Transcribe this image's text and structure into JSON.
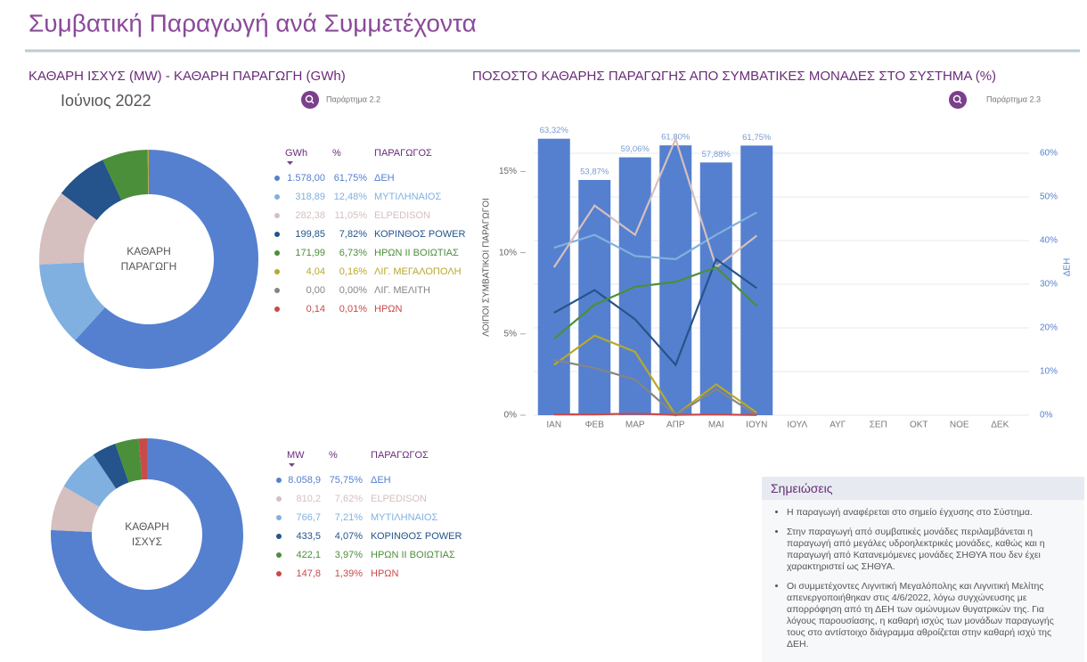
{
  "header": {
    "title": "Συμβατική Παραγωγή ανά Συμμετέχοντα"
  },
  "left_panel": {
    "title": "ΚΑΘΑΡΗ ΙΣΧΥΣ (MW) - ΚΑΘΑΡΗ ΠΑΡΑΓΩΓΗ (GWh)",
    "period": "Ιούνιος 2022",
    "link": "Παράρτημα 2.2"
  },
  "chart_data": [
    {
      "type": "pie",
      "center_label": [
        "ΚΑΘΑΡΗ",
        "ΠΑΡΑΓΩΓΗ"
      ],
      "columns": [
        "GWh",
        "%",
        "ΠΑΡΑΓΩΓΟΣ"
      ],
      "categories": [
        "ΔΕΗ",
        "ΜΥΤΙΛΗΝΑΙΟΣ",
        "ELPEDISON",
        "ΚΟΡΙΝΘΟΣ POWER",
        "ΗΡΩΝ ΙΙ ΒΟΙΩΤΙΑΣ",
        "ΛΙΓ. ΜΕΓΑΛΟΠΟΛΗ",
        "ΛΙΓ. ΜΕΛΙΤΗ",
        "ΗΡΩΝ"
      ],
      "values": [
        1578.0,
        318.89,
        282.38,
        199.85,
        171.99,
        4.04,
        0.0,
        0.14
      ],
      "value_labels": [
        "1.578,00",
        "318,89",
        "282,38",
        "199,85",
        "171,99",
        "4,04",
        "0,00",
        "0,14"
      ],
      "percents": [
        61.75,
        12.48,
        11.05,
        7.82,
        6.73,
        0.16,
        0.0,
        0.01
      ],
      "percent_labels": [
        "61,75%",
        "12,48%",
        "11,05%",
        "7,82%",
        "6,73%",
        "0,16%",
        "0,00%",
        "0,01%"
      ],
      "colors": [
        "#5580cf",
        "#80b0e0",
        "#d5bfbf",
        "#24548b",
        "#4b8f3a",
        "#b9a82b",
        "#858585",
        "#c94a4a"
      ]
    },
    {
      "type": "pie",
      "center_label": [
        "ΚΑΘΑΡΗ",
        "ΙΣΧΥΣ"
      ],
      "columns": [
        "MW",
        "%",
        "ΠΑΡΑΓΩΓΟΣ"
      ],
      "categories": [
        "ΔΕΗ",
        "ELPEDISON",
        "ΜΥΤΙΛΗΝΑΙΟΣ",
        "ΚΟΡΙΝΘΟΣ POWER",
        "ΗΡΩΝ ΙΙ ΒΟΙΩΤΙΑΣ",
        "ΗΡΩΝ"
      ],
      "values": [
        8058.9,
        810.2,
        766.7,
        433.5,
        422.1,
        147.8
      ],
      "value_labels": [
        "8.058,9",
        "810,2",
        "766,7",
        "433,5",
        "422,1",
        "147,8"
      ],
      "percents": [
        75.75,
        7.62,
        7.21,
        4.07,
        3.97,
        1.39
      ],
      "percent_labels": [
        "75,75%",
        "7,62%",
        "7,21%",
        "4,07%",
        "3,97%",
        "1,39%"
      ],
      "colors": [
        "#5580cf",
        "#d5bfbf",
        "#80b0e0",
        "#24548b",
        "#4b8f3a",
        "#c94a4a"
      ]
    },
    {
      "type": "bar",
      "title": "ΠΟΣΟΣΤΟ ΚΑΘΑΡΗΣ ΠΑΡΑΓΩΓΗΣ ΑΠΟ ΣΥΜΒΑΤΙΚΕΣ ΜΟΝΑΔΕΣ ΣΤΟ ΣΥΣΤΗΜΑ (%)",
      "link": "Παράρτημα 2.3",
      "categories": [
        "ΙΑΝ",
        "ΦΕΒ",
        "ΜΑΡ",
        "ΑΠΡ",
        "ΜΑΙ",
        "ΙΟΥΝ",
        "ΙΟΥΛ",
        "ΑΥΓ",
        "ΣΕΠ",
        "ΟΚΤ",
        "ΝΟΕ",
        "ΔΕΚ"
      ],
      "ylabel": "ΛΟΙΠΟΙ ΣΥΜΒΑΤΙΚΟΙ ΠΑΡΑΓΩΓΟΙ",
      "y2label": "ΔΕΗ",
      "ylim": [
        0,
        17.6
      ],
      "yticks": [
        {
          "value": 0,
          "label": "0%"
        },
        {
          "value": 5,
          "label": "5%"
        },
        {
          "value": 10,
          "label": "10%"
        },
        {
          "value": 15,
          "label": "15%"
        }
      ],
      "y2lim": [
        0,
        65.5
      ],
      "y2ticks": [
        {
          "value": 0,
          "label": "0%"
        },
        {
          "value": 10,
          "label": "10%"
        },
        {
          "value": 20,
          "label": "20%"
        },
        {
          "value": 30,
          "label": "30%"
        },
        {
          "value": 40,
          "label": "40%"
        },
        {
          "value": 50,
          "label": "50%"
        },
        {
          "value": 60,
          "label": "60%"
        }
      ],
      "grid": true,
      "series": [
        {
          "type": "bar",
          "axis": "y2",
          "color": "#5580cf",
          "values": [
            63.32,
            53.87,
            59.06,
            61.8,
            57.88,
            61.75,
            null,
            null,
            null,
            null,
            null,
            null
          ],
          "value_labels": [
            "63,32%",
            "53,87%",
            "59,06%",
            "61,80%",
            "57,88%",
            "61,75%",
            null,
            null,
            null,
            null,
            null,
            null
          ]
        },
        {
          "type": "line",
          "color": "#80b0e0",
          "values": [
            10.3,
            11.1,
            9.8,
            9.6,
            11.1,
            12.48,
            null,
            null,
            null,
            null,
            null,
            null
          ]
        },
        {
          "type": "line",
          "color": "#d5bfbf",
          "values": [
            9.1,
            12.9,
            11.1,
            17.0,
            9.1,
            11.05,
            null,
            null,
            null,
            null,
            null,
            null
          ]
        },
        {
          "type": "line",
          "color": "#24548b",
          "values": [
            6.3,
            7.7,
            5.9,
            3.1,
            9.6,
            7.82,
            null,
            null,
            null,
            null,
            null,
            null
          ]
        },
        {
          "type": "line",
          "color": "#4b8f3a",
          "values": [
            4.7,
            6.8,
            7.9,
            8.2,
            9.1,
            6.73,
            null,
            null,
            null,
            null,
            null,
            null
          ]
        },
        {
          "type": "line",
          "color": "#b9a82b",
          "values": [
            3.1,
            4.9,
            3.9,
            0,
            1.9,
            0.16,
            null,
            null,
            null,
            null,
            null,
            null
          ]
        },
        {
          "type": "line",
          "color": "#858585",
          "values": [
            3.4,
            2.9,
            2.2,
            0,
            1.6,
            0,
            null,
            null,
            null,
            null,
            null,
            null
          ]
        },
        {
          "type": "line",
          "color": "#c94a4a",
          "values": [
            0.05,
            0.05,
            0.1,
            0.02,
            0.05,
            0.01,
            null,
            null,
            null,
            null,
            null,
            null
          ]
        }
      ]
    }
  ],
  "notes": {
    "title": "Σημειώσεις",
    "items": [
      "Η παραγωγή αναφέρεται στο σημείο έγχυσης στο Σύστημα.",
      "Στην παραγωγή από συμβατικές μονάδες περιλαμβάνεται η παραγωγή από μεγάλες υδροηλεκτρικές μονάδες, καθώς και η παραγωγή από Κατανεμόμενες μονάδες ΣΗΘΥΑ που δεν έχει χαρακτηριστεί ως ΣΗΘΥΑ.",
      "Οι συμμετέχοντες Λιγνιτική Μεγαλόπολης και Λιγνιτική Μελίτης απενεργοποιήθηκαν στις 4/6/2022, λόγω συγχώνευσης με απορρόφηση από τη ΔΕΗ των ομώνυμων θυγατρικών της. Για λόγους παρουσίασης, η καθαρή ισχύς των μονάδων παραγωγής τους στο αντίστοιχο διάγραμμα αθροίζεται στην καθαρή ισχύ της ΔΕΗ."
    ]
  }
}
